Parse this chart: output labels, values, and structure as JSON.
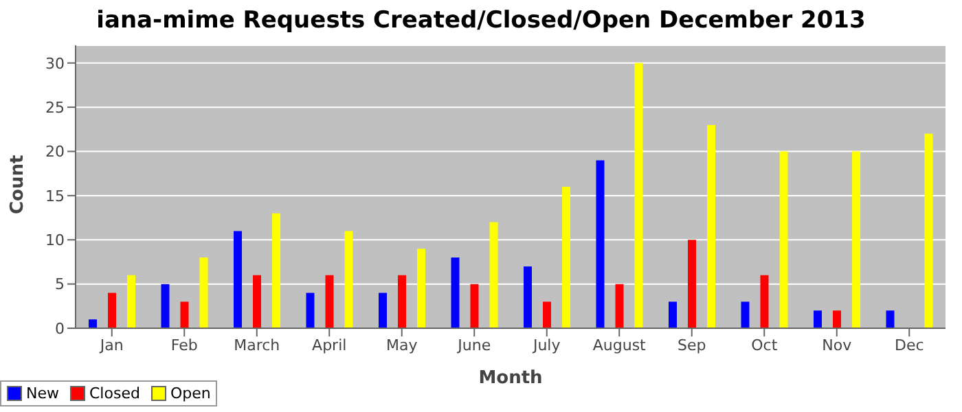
{
  "chart_data": {
    "type": "bar",
    "title": "iana-mime Requests Created/Closed/Open December 2013",
    "xlabel": "Month",
    "ylabel": "Count",
    "categories": [
      "Jan",
      "Feb",
      "March",
      "April",
      "May",
      "June",
      "July",
      "August",
      "Sep",
      "Oct",
      "Nov",
      "Dec"
    ],
    "series": [
      {
        "name": "New",
        "color": "#0000ff",
        "values": [
          1,
          5,
          11,
          4,
          4,
          8,
          7,
          19,
          3,
          3,
          2,
          2
        ]
      },
      {
        "name": "Closed",
        "color": "#ff0000",
        "values": [
          4,
          3,
          6,
          6,
          6,
          5,
          3,
          5,
          10,
          6,
          2,
          0
        ]
      },
      {
        "name": "Open",
        "color": "#ffff00",
        "values": [
          6,
          8,
          13,
          11,
          9,
          12,
          16,
          30,
          23,
          20,
          20,
          22
        ]
      }
    ],
    "ylim": [
      0,
      32
    ],
    "yticks": [
      0,
      5,
      10,
      15,
      20,
      25,
      30
    ],
    "grid": "y",
    "legend": "bottom"
  }
}
